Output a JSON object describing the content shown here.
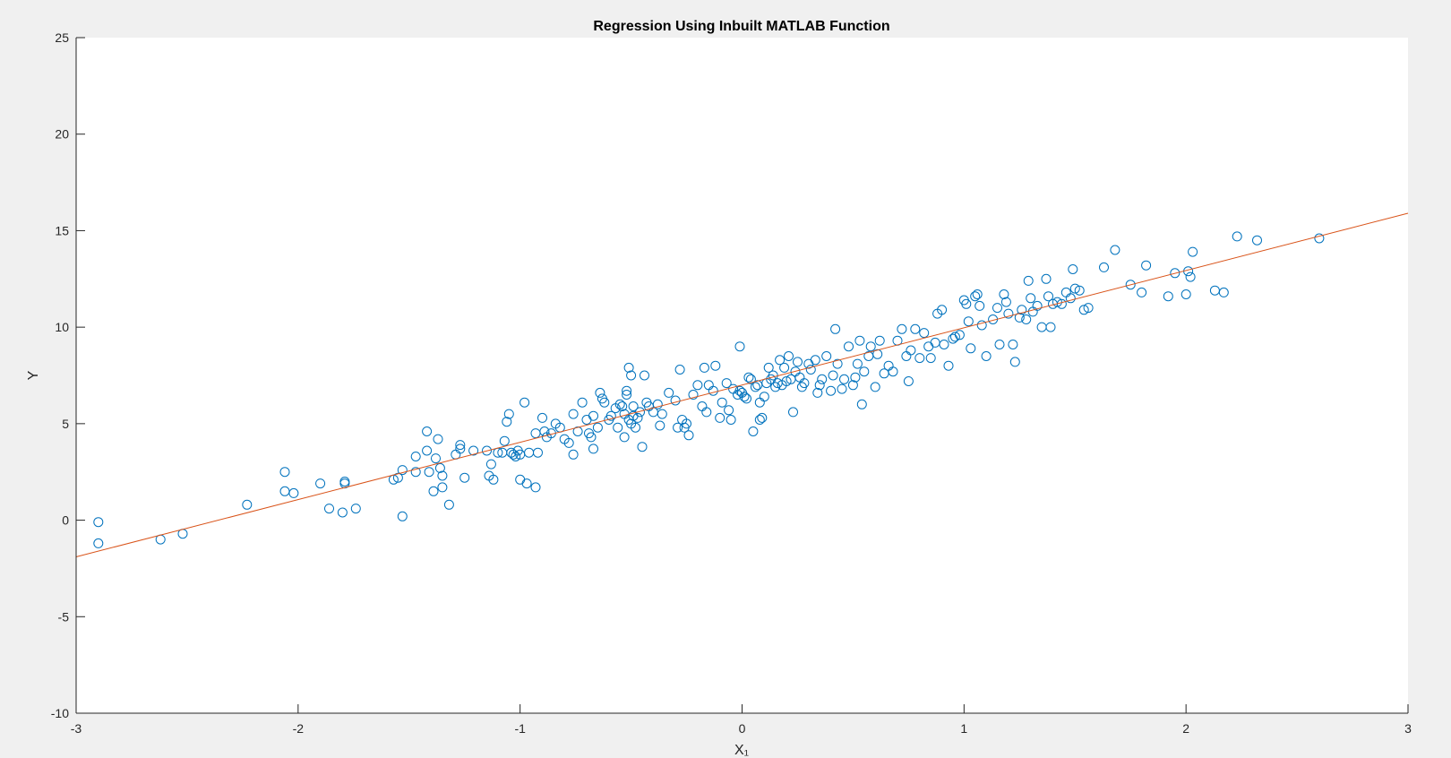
{
  "chart_data": {
    "type": "scatter",
    "title": "Regression Using Inbuilt MATLAB Function",
    "xlabel": "X₁",
    "ylabel": "Y",
    "xlim": [
      -3,
      3
    ],
    "ylim": [
      -10,
      25
    ],
    "xticks": [
      "-3",
      "-2",
      "-1",
      "0",
      "1",
      "2",
      "3"
    ],
    "yticks": [
      "-10",
      "-5",
      "0",
      "5",
      "10",
      "15",
      "20",
      "25"
    ],
    "grid": false,
    "colors": {
      "points": "#0072BD",
      "line": "#D95319",
      "axes_bg": "#ffffff",
      "figure_bg": "#f0f0f0"
    },
    "fit_line": {
      "x": [
        -3,
        3
      ],
      "y": [
        -1.9,
        15.9
      ]
    },
    "points": [
      [
        -2.9,
        -0.1
      ],
      [
        -2.9,
        -1.2
      ],
      [
        -2.62,
        -1.0
      ],
      [
        -2.52,
        -0.7
      ],
      [
        -2.23,
        0.8
      ],
      [
        -2.06,
        2.5
      ],
      [
        -2.06,
        1.5
      ],
      [
        -2.02,
        1.4
      ],
      [
        -1.9,
        1.9
      ],
      [
        -1.86,
        0.6
      ],
      [
        -1.8,
        0.4
      ],
      [
        -1.79,
        2.0
      ],
      [
        -1.79,
        1.9
      ],
      [
        -1.74,
        0.6
      ],
      [
        -1.57,
        2.1
      ],
      [
        -1.55,
        2.2
      ],
      [
        -1.53,
        0.2
      ],
      [
        -1.53,
        2.6
      ],
      [
        -1.47,
        3.3
      ],
      [
        -1.47,
        2.5
      ],
      [
        -1.42,
        4.6
      ],
      [
        -1.42,
        3.6
      ],
      [
        -1.41,
        2.5
      ],
      [
        -1.39,
        1.5
      ],
      [
        -1.38,
        3.2
      ],
      [
        -1.37,
        4.2
      ],
      [
        -1.36,
        2.7
      ],
      [
        -1.35,
        1.7
      ],
      [
        -1.35,
        2.3
      ],
      [
        -1.32,
        0.8
      ],
      [
        -1.29,
        3.4
      ],
      [
        -1.27,
        3.9
      ],
      [
        -1.27,
        3.7
      ],
      [
        -1.25,
        2.2
      ],
      [
        -1.21,
        3.6
      ],
      [
        -1.15,
        3.6
      ],
      [
        -1.14,
        2.3
      ],
      [
        -1.13,
        2.9
      ],
      [
        -1.12,
        2.1
      ],
      [
        -1.1,
        3.5
      ],
      [
        -1.08,
        3.5
      ],
      [
        -1.07,
        4.1
      ],
      [
        -1.06,
        5.1
      ],
      [
        -1.05,
        5.5
      ],
      [
        -1.04,
        3.5
      ],
      [
        -1.03,
        3.4
      ],
      [
        -1.02,
        3.3
      ],
      [
        -1.01,
        3.6
      ],
      [
        -1.0,
        3.4
      ],
      [
        -1.0,
        2.1
      ],
      [
        -0.98,
        6.1
      ],
      [
        -0.97,
        1.9
      ],
      [
        -0.96,
        3.5
      ],
      [
        -0.93,
        4.5
      ],
      [
        -0.93,
        1.7
      ],
      [
        -0.92,
        3.5
      ],
      [
        -0.9,
        5.3
      ],
      [
        -0.89,
        4.6
      ],
      [
        -0.88,
        4.3
      ],
      [
        -0.86,
        4.5
      ],
      [
        -0.84,
        5.0
      ],
      [
        -0.82,
        4.8
      ],
      [
        -0.8,
        4.2
      ],
      [
        -0.78,
        4.0
      ],
      [
        -0.76,
        5.5
      ],
      [
        -0.76,
        3.4
      ],
      [
        -0.74,
        4.6
      ],
      [
        -0.72,
        6.1
      ],
      [
        -0.7,
        5.2
      ],
      [
        -0.69,
        4.5
      ],
      [
        -0.68,
        4.3
      ],
      [
        -0.67,
        5.4
      ],
      [
        -0.67,
        3.7
      ],
      [
        -0.65,
        4.8
      ],
      [
        -0.64,
        6.6
      ],
      [
        -0.63,
        6.3
      ],
      [
        -0.62,
        6.1
      ],
      [
        -0.6,
        5.2
      ],
      [
        -0.59,
        5.4
      ],
      [
        -0.57,
        5.8
      ],
      [
        -0.56,
        4.8
      ],
      [
        -0.55,
        6.0
      ],
      [
        -0.54,
        5.9
      ],
      [
        -0.53,
        5.5
      ],
      [
        -0.53,
        4.3
      ],
      [
        -0.52,
        6.5
      ],
      [
        -0.52,
        6.7
      ],
      [
        -0.51,
        5.2
      ],
      [
        -0.51,
        7.9
      ],
      [
        -0.5,
        7.5
      ],
      [
        -0.5,
        5.0
      ],
      [
        -0.49,
        5.9
      ],
      [
        -0.49,
        5.4
      ],
      [
        -0.48,
        4.8
      ],
      [
        -0.47,
        5.3
      ],
      [
        -0.46,
        5.6
      ],
      [
        -0.45,
        3.8
      ],
      [
        -0.44,
        7.5
      ],
      [
        -0.43,
        6.1
      ],
      [
        -0.42,
        5.9
      ],
      [
        -0.4,
        5.6
      ],
      [
        -0.38,
        6.0
      ],
      [
        -0.37,
        4.9
      ],
      [
        -0.36,
        5.5
      ],
      [
        -0.33,
        6.6
      ],
      [
        -0.3,
        6.2
      ],
      [
        -0.29,
        4.8
      ],
      [
        -0.28,
        7.8
      ],
      [
        -0.27,
        5.2
      ],
      [
        -0.26,
        4.8
      ],
      [
        -0.25,
        5.0
      ],
      [
        -0.24,
        4.4
      ],
      [
        -0.22,
        6.5
      ],
      [
        -0.2,
        7.0
      ],
      [
        -0.18,
        5.9
      ],
      [
        -0.17,
        7.9
      ],
      [
        -0.16,
        5.6
      ],
      [
        -0.15,
        7.0
      ],
      [
        -0.13,
        6.7
      ],
      [
        -0.12,
        8.0
      ],
      [
        -0.1,
        5.3
      ],
      [
        -0.09,
        6.1
      ],
      [
        -0.07,
        7.1
      ],
      [
        -0.06,
        5.7
      ],
      [
        -0.05,
        5.2
      ],
      [
        -0.04,
        6.8
      ],
      [
        -0.02,
        6.5
      ],
      [
        -0.01,
        9.0
      ],
      [
        -0.01,
        6.7
      ],
      [
        0.0,
        6.6
      ],
      [
        0.01,
        6.4
      ],
      [
        0.02,
        6.3
      ],
      [
        0.03,
        7.4
      ],
      [
        0.04,
        7.3
      ],
      [
        0.05,
        4.6
      ],
      [
        0.06,
        6.9
      ],
      [
        0.07,
        7.0
      ],
      [
        0.08,
        5.2
      ],
      [
        0.08,
        6.1
      ],
      [
        0.09,
        5.3
      ],
      [
        0.1,
        6.4
      ],
      [
        0.11,
        7.1
      ],
      [
        0.12,
        7.9
      ],
      [
        0.13,
        7.3
      ],
      [
        0.14,
        7.5
      ],
      [
        0.15,
        6.9
      ],
      [
        0.16,
        7.1
      ],
      [
        0.17,
        8.3
      ],
      [
        0.18,
        7.0
      ],
      [
        0.19,
        7.9
      ],
      [
        0.2,
        7.2
      ],
      [
        0.21,
        8.5
      ],
      [
        0.22,
        7.3
      ],
      [
        0.23,
        5.6
      ],
      [
        0.24,
        7.7
      ],
      [
        0.25,
        8.2
      ],
      [
        0.26,
        7.4
      ],
      [
        0.27,
        6.9
      ],
      [
        0.28,
        7.1
      ],
      [
        0.3,
        8.1
      ],
      [
        0.31,
        7.8
      ],
      [
        0.33,
        8.3
      ],
      [
        0.34,
        6.6
      ],
      [
        0.35,
        7.0
      ],
      [
        0.36,
        7.3
      ],
      [
        0.38,
        8.5
      ],
      [
        0.4,
        6.7
      ],
      [
        0.41,
        7.5
      ],
      [
        0.42,
        9.9
      ],
      [
        0.43,
        8.1
      ],
      [
        0.45,
        6.8
      ],
      [
        0.46,
        7.3
      ],
      [
        0.48,
        9.0
      ],
      [
        0.5,
        7.0
      ],
      [
        0.51,
        7.4
      ],
      [
        0.52,
        8.1
      ],
      [
        0.53,
        9.3
      ],
      [
        0.54,
        6.0
      ],
      [
        0.55,
        7.7
      ],
      [
        0.57,
        8.5
      ],
      [
        0.58,
        9.0
      ],
      [
        0.6,
        6.9
      ],
      [
        0.61,
        8.6
      ],
      [
        0.62,
        9.3
      ],
      [
        0.64,
        7.6
      ],
      [
        0.66,
        8.0
      ],
      [
        0.68,
        7.7
      ],
      [
        0.7,
        9.3
      ],
      [
        0.72,
        9.9
      ],
      [
        0.74,
        8.5
      ],
      [
        0.75,
        7.2
      ],
      [
        0.76,
        8.8
      ],
      [
        0.78,
        9.9
      ],
      [
        0.8,
        8.4
      ],
      [
        0.82,
        9.7
      ],
      [
        0.84,
        9.0
      ],
      [
        0.85,
        8.4
      ],
      [
        0.87,
        9.2
      ],
      [
        0.88,
        10.7
      ],
      [
        0.9,
        10.9
      ],
      [
        0.91,
        9.1
      ],
      [
        0.93,
        8.0
      ],
      [
        0.95,
        9.4
      ],
      [
        0.96,
        9.5
      ],
      [
        0.98,
        9.6
      ],
      [
        1.0,
        11.4
      ],
      [
        1.01,
        11.2
      ],
      [
        1.02,
        10.3
      ],
      [
        1.03,
        8.9
      ],
      [
        1.05,
        11.6
      ],
      [
        1.06,
        11.7
      ],
      [
        1.07,
        11.1
      ],
      [
        1.08,
        10.1
      ],
      [
        1.1,
        8.5
      ],
      [
        1.13,
        10.4
      ],
      [
        1.15,
        11.0
      ],
      [
        1.16,
        9.1
      ],
      [
        1.18,
        11.7
      ],
      [
        1.19,
        11.3
      ],
      [
        1.2,
        10.7
      ],
      [
        1.22,
        9.1
      ],
      [
        1.23,
        8.2
      ],
      [
        1.25,
        10.5
      ],
      [
        1.26,
        10.9
      ],
      [
        1.28,
        10.4
      ],
      [
        1.29,
        12.4
      ],
      [
        1.3,
        11.5
      ],
      [
        1.31,
        10.8
      ],
      [
        1.33,
        11.1
      ],
      [
        1.35,
        10.0
      ],
      [
        1.37,
        12.5
      ],
      [
        1.38,
        11.6
      ],
      [
        1.39,
        10.0
      ],
      [
        1.4,
        11.2
      ],
      [
        1.42,
        11.3
      ],
      [
        1.44,
        11.2
      ],
      [
        1.46,
        11.8
      ],
      [
        1.48,
        11.5
      ],
      [
        1.49,
        13.0
      ],
      [
        1.5,
        12.0
      ],
      [
        1.52,
        11.9
      ],
      [
        1.54,
        10.9
      ],
      [
        1.56,
        11.0
      ],
      [
        1.63,
        13.1
      ],
      [
        1.68,
        14.0
      ],
      [
        1.75,
        12.2
      ],
      [
        1.8,
        11.8
      ],
      [
        1.82,
        13.2
      ],
      [
        1.92,
        11.6
      ],
      [
        1.95,
        12.8
      ],
      [
        2.0,
        11.7
      ],
      [
        2.01,
        12.9
      ],
      [
        2.02,
        12.6
      ],
      [
        2.03,
        13.9
      ],
      [
        2.13,
        11.9
      ],
      [
        2.17,
        11.8
      ],
      [
        2.23,
        14.7
      ],
      [
        2.32,
        14.5
      ],
      [
        2.6,
        14.6
      ]
    ]
  }
}
